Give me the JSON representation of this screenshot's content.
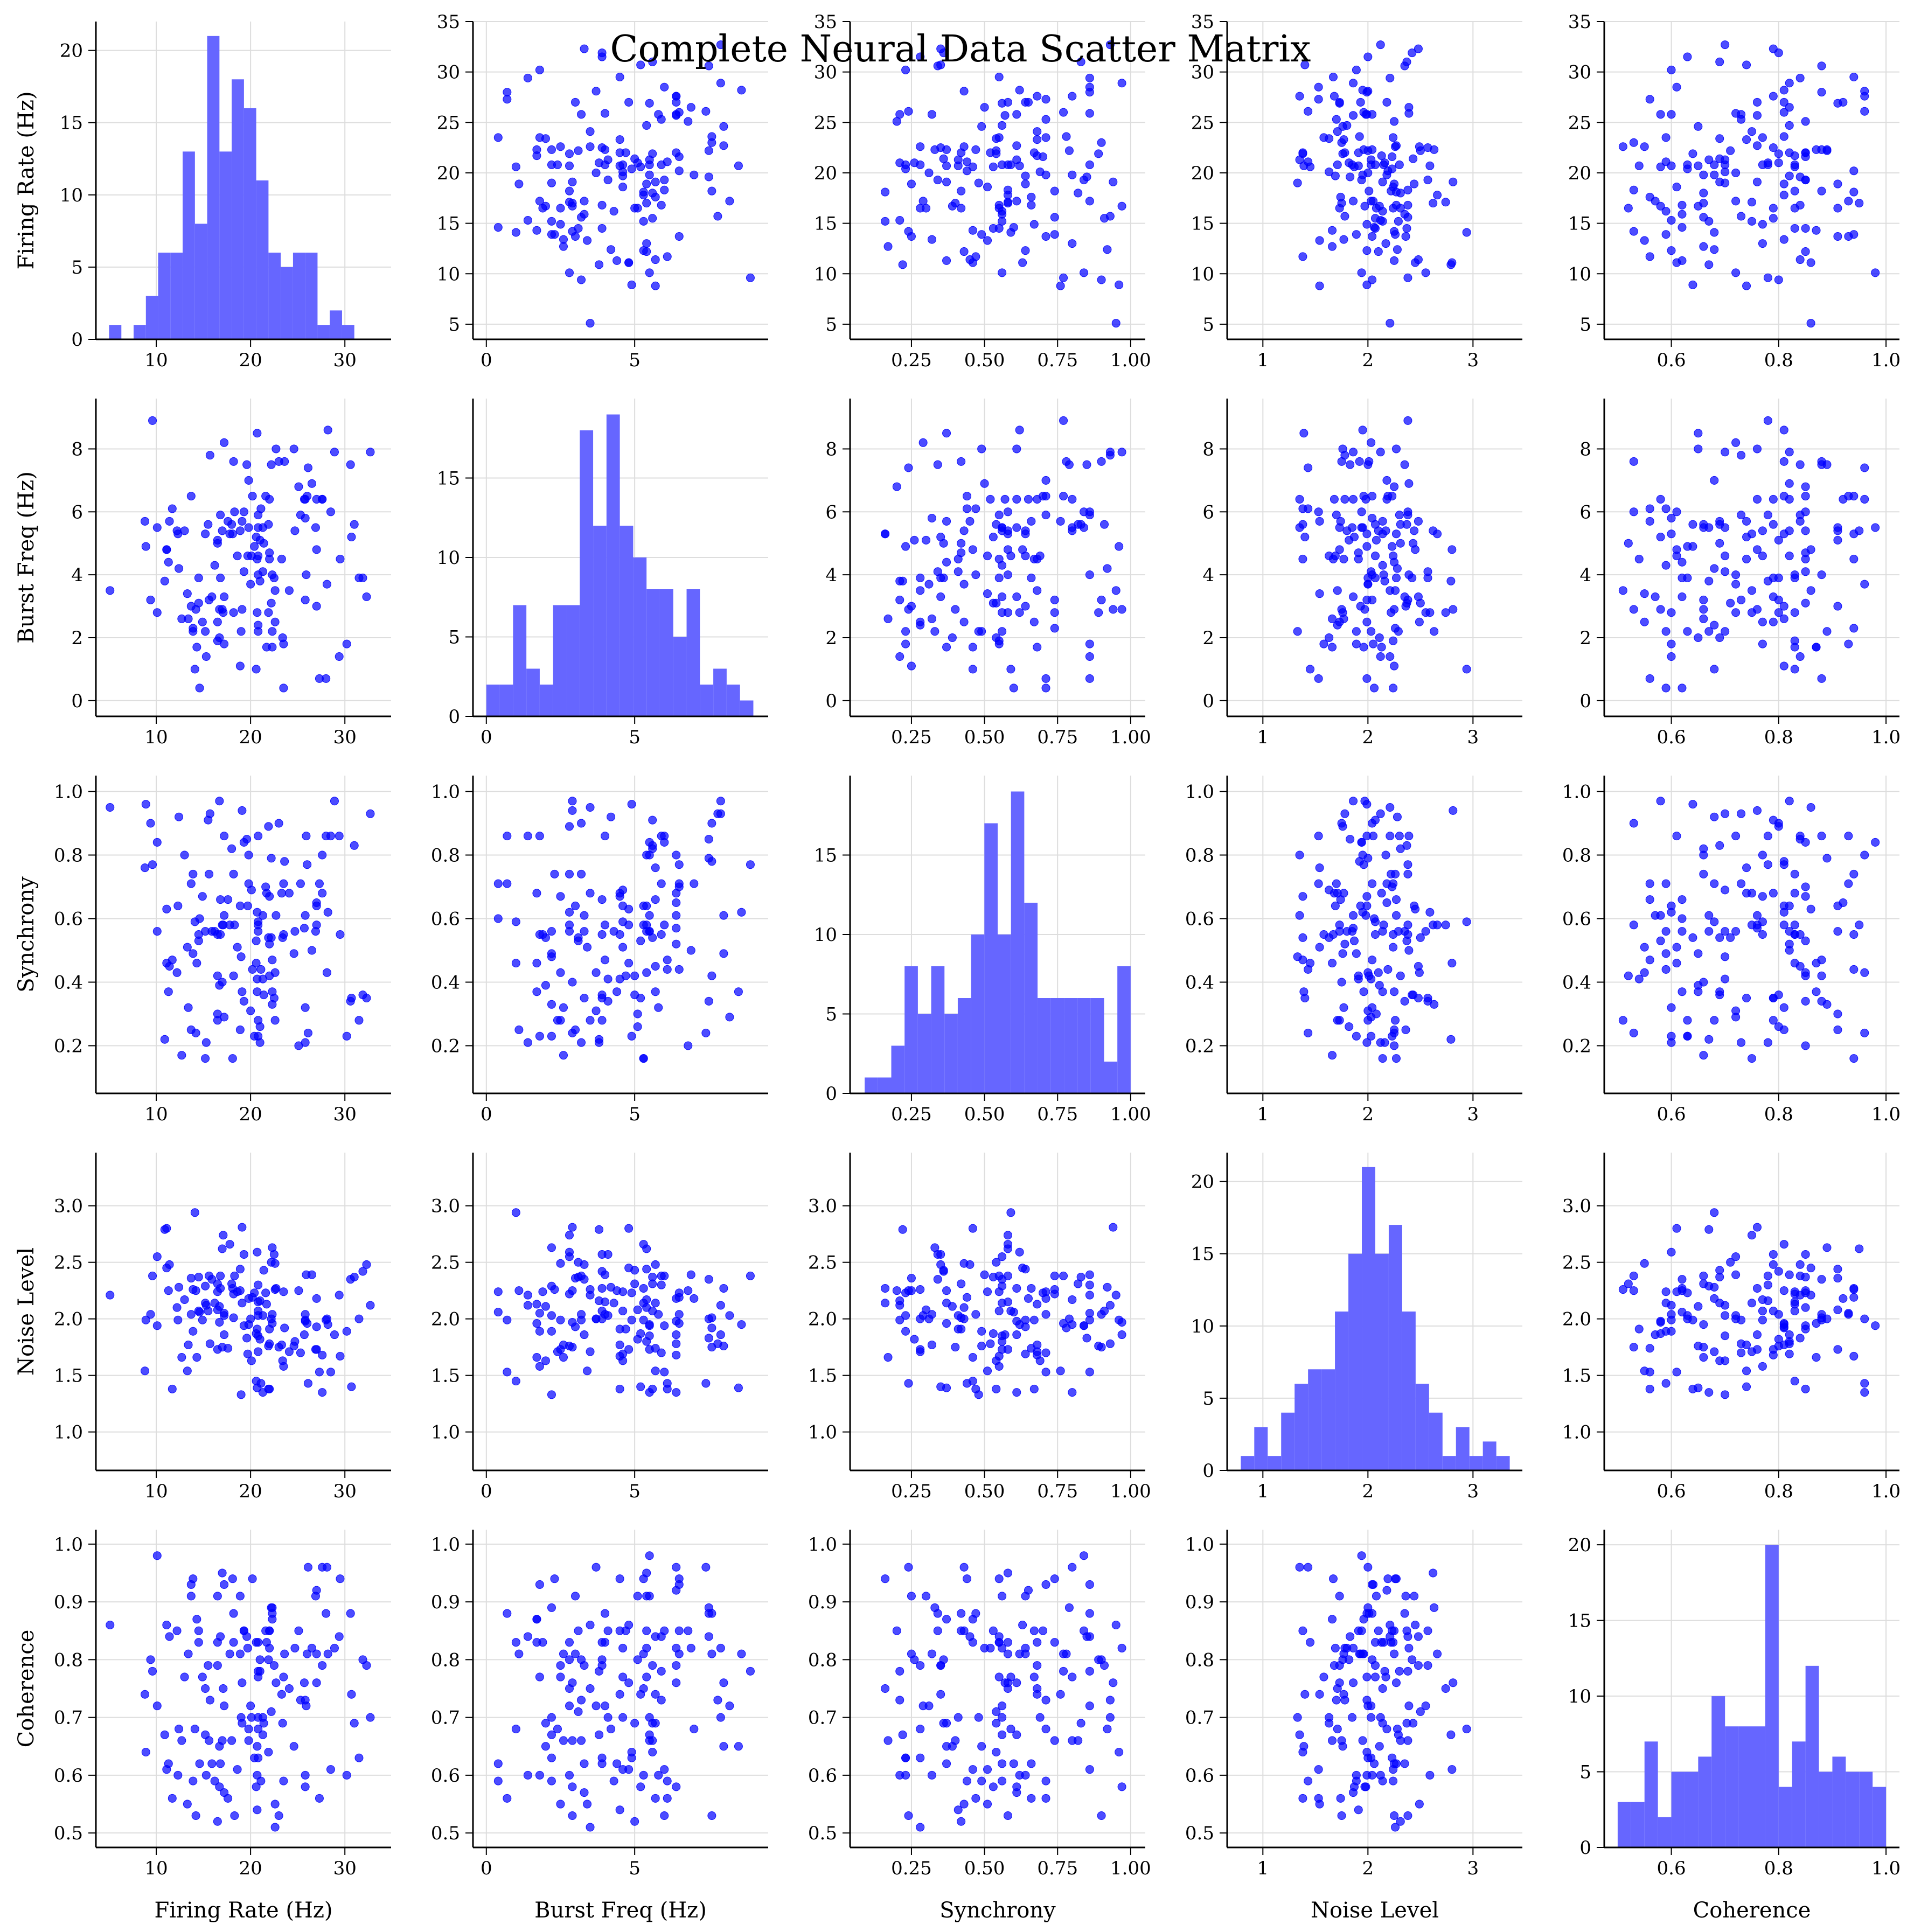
{
  "title": "Complete Neural Data Scatter Matrix",
  "chart_data": {
    "type": "scatter",
    "title": "Complete Neural Data Scatter Matrix",
    "grid": true,
    "colors": {
      "marker": "#0000ff",
      "histogram": "#6666ff",
      "grid": "#dddddd"
    },
    "variables": [
      {
        "key": "rate",
        "label": "Firing Rate (Hz)",
        "xlim": [
          3.6,
          34.9
        ],
        "xticks": [
          "10",
          "20",
          "30"
        ],
        "ylim": [
          3.5,
          35
        ],
        "yticks": [
          "5",
          "10",
          "15",
          "20",
          "25",
          "30",
          "35"
        ]
      },
      {
        "key": "burst",
        "label": "Burst Freq (Hz)",
        "xlim": [
          -0.45,
          9.5
        ],
        "xticks": [
          "0",
          "5"
        ],
        "ylim": [
          -0.5,
          9.6
        ],
        "yticks": [
          "0",
          "2",
          "4",
          "6",
          "8"
        ]
      },
      {
        "key": "sync",
        "label": "Synchrony",
        "xlim": [
          0.04,
          1.05
        ],
        "xticks": [
          "0.25",
          "0.50",
          "0.75",
          "1.00"
        ],
        "ylim": [
          0.05,
          1.05
        ],
        "yticks": [
          "0.2",
          "0.4",
          "0.6",
          "0.8",
          "1.0"
        ]
      },
      {
        "key": "noise",
        "label": "Noise Level",
        "xlim": [
          0.66,
          3.47
        ],
        "xticks": [
          "1",
          "2",
          "3"
        ],
        "ylim": [
          0.66,
          3.47
        ],
        "yticks": [
          "1.0",
          "1.5",
          "2.0",
          "2.5",
          "3.0"
        ]
      },
      {
        "key": "coh",
        "label": "Coherence",
        "xlim": [
          0.475,
          1.025
        ],
        "xticks": [
          "0.6",
          "0.8",
          "1.0"
        ],
        "ylim": [
          0.475,
          1.025
        ],
        "yticks": [
          "0.5",
          "0.6",
          "0.7",
          "0.8",
          "0.9",
          "1.0"
        ]
      }
    ],
    "histograms": {
      "rate": {
        "start": 5.0,
        "width": 1.3,
        "counts": [
          1,
          0,
          1,
          3,
          6,
          6,
          13,
          8,
          21,
          13,
          18,
          16,
          11,
          6,
          5,
          6,
          6,
          1,
          2,
          1
        ],
        "ylim": [
          0,
          22
        ],
        "yticks": [
          "0",
          "5",
          "10",
          "15",
          "20"
        ]
      },
      "burst": {
        "start": 0.0,
        "width": 0.45,
        "counts": [
          2,
          2,
          7,
          3,
          2,
          7,
          7,
          18,
          12,
          19,
          12,
          10,
          8,
          8,
          5,
          8,
          2,
          3,
          2,
          1
        ],
        "ylim": [
          0,
          20
        ],
        "yticks": [
          "0",
          "5",
          "10",
          "15"
        ]
      },
      "sync": {
        "start": 0.09,
        "width": 0.0455,
        "counts": [
          1,
          1,
          3,
          8,
          5,
          8,
          5,
          6,
          10,
          17,
          10,
          19,
          12,
          6,
          6,
          6,
          6,
          6,
          2,
          8
        ],
        "ylim": [
          0,
          20
        ],
        "yticks": [
          "0",
          "5",
          "10",
          "15"
        ]
      },
      "noise": {
        "start": 0.79,
        "width": 0.128,
        "counts": [
          1,
          3,
          1,
          4,
          6,
          7,
          7,
          11,
          15,
          21,
          15,
          17,
          11,
          6,
          4,
          1,
          3,
          1,
          2,
          1
        ],
        "ylim": [
          0,
          22
        ],
        "yticks": [
          "0",
          "5",
          "10",
          "15",
          "20"
        ]
      },
      "coh": {
        "start": 0.5,
        "width": 0.025,
        "counts": [
          3,
          3,
          7,
          2,
          5,
          5,
          6,
          10,
          8,
          8,
          8,
          20,
          4,
          7,
          12,
          5,
          6,
          5,
          5,
          4
        ],
        "ylim": [
          0,
          21
        ],
        "yticks": [
          "0",
          "5",
          "10",
          "15",
          "20"
        ]
      }
    },
    "points": {
      "rate": [
        26.5,
        5.1,
        10.1,
        8.8,
        15.2,
        23.5,
        11.1,
        31.0,
        11.4,
        22.0,
        27.6,
        20.6,
        19.8,
        14.2,
        28.5,
        21.1,
        20.7,
        9.4,
        9.6,
        26.0,
        17.0,
        13.9,
        29.4,
        22.2,
        21.6,
        17.2,
        17.6,
        12.2,
        15.2,
        22.6,
        8.9,
        13.7,
        12.7,
        25.8,
        26.9,
        14.1,
        15.7,
        19.0,
        30.6,
        19.8,
        15.9,
        25.8,
        13.9,
        14.5,
        28.0,
        21.3,
        21.9,
        28.1,
        32.3,
        22.6,
        24.6,
        18.2,
        11.7,
        10.1,
        22.3,
        32.7,
        16.8,
        30.7,
        21.4,
        19.3,
        26.1,
        16.5,
        14.9,
        22.0,
        22.0,
        12.3,
        19.1,
        18.1,
        17.0,
        19.3,
        29.5,
        27.0,
        15.6,
        27.6,
        21.0,
        16.5,
        16.2,
        11.1,
        27.0,
        13.7,
        16.7,
        23.5,
        25.9,
        27.0,
        25.3,
        20.6,
        23.6,
        18.6,
        30.2,
        24.1,
        20.8,
        20.2,
        14.6,
        16.5,
        31.9,
        25.1,
        23.3,
        20.8,
        13.4,
        19.6,
        27.3,
        20.8,
        22.2,
        22.7,
        23.0,
        20.8,
        22.3,
        13.3,
        12.4,
        20.7,
        17.8,
        23.4,
        11.3,
        16.7,
        20.8,
        31.5,
        18.3,
        10.9,
        19.1,
        18.9,
        16.5,
        25.8,
        20.4,
        16.8,
        21.3,
        20.0,
        21.0,
        15.5,
        14.5,
        19.7,
        20.1,
        22.5,
        14.3,
        25.7,
        24.7,
        20.7,
        18.2,
        18.9,
        17.2,
        17.1,
        20.8,
        13.0,
        17.2,
        15.3,
        18.0,
        21.7,
        28.2,
        22.3,
        21.9,
        28.9
      ],
      "burst": [
        6.9,
        3.5,
        5.5,
        5.7,
        5.3,
        0.4,
        4.8,
        5.6,
        5.7,
        4.5,
        6.4,
        1.0,
        7.0,
        2.9,
        6.0,
        6.1,
        2.8,
        3.2,
        8.9,
        6.5,
        5.4,
        2.2,
        1.4,
        3.1,
        6.5,
        1.8,
        5.7,
        5.4,
        2.2,
        2.5,
        4.9,
        3.0,
        2.6,
        6.4,
        5.5,
        1.0,
        7.8,
        2.2,
        7.5,
        5.5,
        3.3,
        3.2,
        2.3,
        3.9,
        0.7,
        5.5,
        2.8,
        3.7,
        3.3,
        3.5,
        8.0,
        7.6,
        6.1,
        2.8,
        2.2,
        7.9,
        5.9,
        5.2,
        5.0,
        4.1,
        7.4,
        2.5,
        2.5,
        6.4,
        4.7,
        5.3,
        5.7,
        5.3,
        2.9,
        6.0,
        4.5,
        4.8,
        3.2,
        6.4,
        3.8,
        5.0,
        4.3,
        4.8,
        3.0,
        6.5,
        2.9,
        1.8,
        4.0,
        6.4,
        5.9,
        5.2,
        7.6,
        4.6,
        1.8,
        3.5,
        5.5,
        6.5,
        0.4,
        5.1,
        3.9,
        6.8,
        4.5,
        2.2,
        2.6,
        7.5,
        0.7,
        4.6,
        7.5,
        8.0,
        7.6,
        2.4,
        4.0,
        3.4,
        4.2,
        8.5,
        5.3,
        2.0,
        4.4,
        2.0,
        4.0,
        3.9,
        6.0,
        3.8,
        2.9,
        1.1,
        1.9,
        5.8,
        4.9,
        3.9,
        4.1,
        3.7,
        5.1,
        5.6,
        3.1,
        4.6,
        4.6,
        3.9,
        1.7,
        6.4,
        5.4,
        4.5,
        2.8,
        5.4,
        8.2,
        2.8,
        5.9,
        5.4,
        3.3,
        1.4,
        5.6,
        1.7,
        8.6,
        1.7,
        5.6,
        7.9
      ],
      "sync": [
        0.5,
        0.95,
        0.84,
        0.76,
        0.16,
        0.71,
        0.46,
        0.83,
        0.45,
        0.67,
        0.8,
        0.46,
        0.71,
        0.24,
        0.86,
        0.44,
        0.62,
        0.9,
        0.77,
        0.77,
        0.58,
        0.49,
        0.86,
        0.54,
        0.7,
        0.86,
        0.66,
        0.43,
        0.56,
        0.43,
        0.96,
        0.25,
        0.17,
        0.61,
        0.56,
        0.59,
        0.93,
        0.48,
        0.34,
        0.8,
        0.56,
        0.21,
        0.74,
        0.55,
        0.86,
        0.61,
        0.89,
        0.43,
        0.35,
        0.28,
        0.49,
        0.42,
        0.47,
        0.56,
        0.33,
        0.93,
        0.55,
        0.35,
        0.36,
        0.34,
        0.24,
        0.28,
        0.67,
        0.52,
        0.42,
        0.64,
        0.37,
        0.16,
        0.4,
        0.84,
        0.55,
        0.58,
        0.74,
        0.68,
        0.21,
        0.42,
        0.56,
        0.63,
        0.64,
        0.71,
        0.97,
        0.55,
        0.86,
        0.65,
        0.71,
        0.53,
        0.78,
        0.51,
        0.23,
        0.68,
        0.56,
        0.44,
        0.6,
        0.3,
        0.36,
        0.2,
        0.68,
        0.23,
        0.32,
        0.85,
        0.71,
        0.59,
        0.79,
        0.61,
        0.9,
        0.28,
        0.47,
        0.51,
        0.92,
        0.37,
        0.58,
        0.54,
        0.37,
        0.39,
        0.58,
        0.28,
        0.58,
        0.22,
        0.94,
        0.25,
        0.55,
        0.32,
        0.23,
        0.66,
        0.41,
        0.31,
        0.26,
        0.91,
        0.53,
        0.64,
        0.69,
        0.35,
        0.46,
        0.57,
        0.56,
        0.41,
        0.74,
        0.64,
        0.29,
        0.58,
        0.86,
        0.8,
        0.61,
        0.21,
        0.82,
        0.68,
        0.62,
        0.37,
        0.54,
        0.97
      ],
      "noise": [
        2.39,
        2.21,
        1.94,
        1.54,
        2.14,
        2.24,
        2.8,
        2.37,
        2.48,
        1.38,
        1.35,
        1.45,
        2.18,
        2.25,
        1.53,
        1.43,
        2.59,
        2.04,
        2.38,
        1.96,
        2.62,
        1.89,
        2.21,
        2.5,
        2.23,
        2.05,
        1.74,
        2.1,
        2.29,
        2.49,
        1.99,
        2.36,
        1.66,
        1.98,
        1.73,
        2.94,
        1.78,
        1.33,
        2.35,
        1.95,
        2.35,
        1.99,
        2.26,
        2.07,
        1.99,
        1.35,
        1.76,
        2.0,
        2.48,
        2.26,
        1.76,
        2.01,
        1.38,
        2.55,
        2.63,
        2.12,
        2.38,
        1.4,
        2.43,
        2.57,
        1.43,
        1.73,
        1.99,
        1.78,
        1.91,
        1.99,
        2.14,
        2.27,
        1.75,
        1.94,
        1.67,
        1.73,
        2.38,
        1.68,
        2.16,
        2.31,
        2.14,
        2.45,
        1.93,
        2.04,
        1.97,
        1.58,
        2.39,
        2.18,
        1.7,
        1.87,
        1.92,
        2.24,
        1.89,
        1.71,
        1.85,
        2.19,
        2.06,
        2.08,
        2.42,
        2.25,
        1.77,
        2.03,
        1.77,
        1.83,
        1.53,
        2.07,
        2.0,
        2.27,
        1.75,
        1.71,
        2.04,
        1.54,
        2.28,
        1.39,
        2.66,
        1.63,
        2.25,
        2.11,
        2.15,
        2.0,
        2.38,
        2.79,
        2.81,
        2.25,
        2.24,
        2.04,
        2.23,
        2.27,
        2.03,
        2.0,
        1.82,
        2.07,
        2.37,
        1.69,
        1.63,
        2.57,
        1.66,
        1.86,
        1.8,
        1.91,
        2.22,
        2.44,
        2.03,
        2.74,
        2.3,
        2.17,
        1.86,
        2.12,
        2.31,
        2.13,
        1.95,
        1.96,
        1.38,
        1.86
      ],
      "coh": [
        0.82,
        0.86,
        0.98,
        0.74,
        0.75,
        0.59,
        0.61,
        0.69,
        0.84,
        0.85,
        0.96,
        0.83,
        0.68,
        0.53,
        0.61,
        0.59,
        0.6,
        0.8,
        0.78,
        0.81,
        0.95,
        0.59,
        0.84,
        0.71,
        0.85,
        0.93,
        0.56,
        0.85,
        0.67,
        0.55,
        0.64,
        0.91,
        0.66,
        0.58,
        0.91,
        0.68,
        0.73,
        0.7,
        0.88,
        0.66,
        0.62,
        0.73,
        0.94,
        0.83,
        0.88,
        0.67,
        0.8,
        0.96,
        0.79,
        0.51,
        0.65,
        0.88,
        0.56,
        0.72,
        0.89,
        0.7,
        0.84,
        0.74,
        0.69,
        0.85,
        0.96,
        0.79,
        0.77,
        0.82,
        0.85,
        0.6,
        0.69,
        0.94,
        0.66,
        0.85,
        0.94,
        0.76,
        0.66,
        0.79,
        0.78,
        0.52,
        0.59,
        0.86,
        0.81,
        0.93,
        0.58,
        0.77,
        0.72,
        0.92,
        0.73,
        0.58,
        0.81,
        0.61,
        0.6,
        0.75,
        0.7,
        0.94,
        0.62,
        0.91,
        0.8,
        0.85,
        0.74,
        0.63,
        0.81,
        0.84,
        0.56,
        0.77,
        0.89,
        0.76,
        0.53,
        0.68,
        0.88,
        0.55,
        0.68,
        0.65,
        0.81,
        0.69,
        0.62,
        0.65,
        0.83,
        0.63,
        0.53,
        0.67,
        0.76,
        0.81,
        0.83,
        0.6,
        0.63,
        0.62,
        0.7,
        0.72,
        0.8,
        0.79,
        0.85,
        0.82,
        0.7,
        0.79,
        0.87,
        0.76,
        0.82,
        0.54,
        0.83,
        0.91,
        0.72,
        0.75,
        0.78,
        0.77,
        0.57,
        0.6,
        0.66,
        0.83,
        0.81,
        0.87,
        0.64,
        0.82
      ]
    }
  }
}
